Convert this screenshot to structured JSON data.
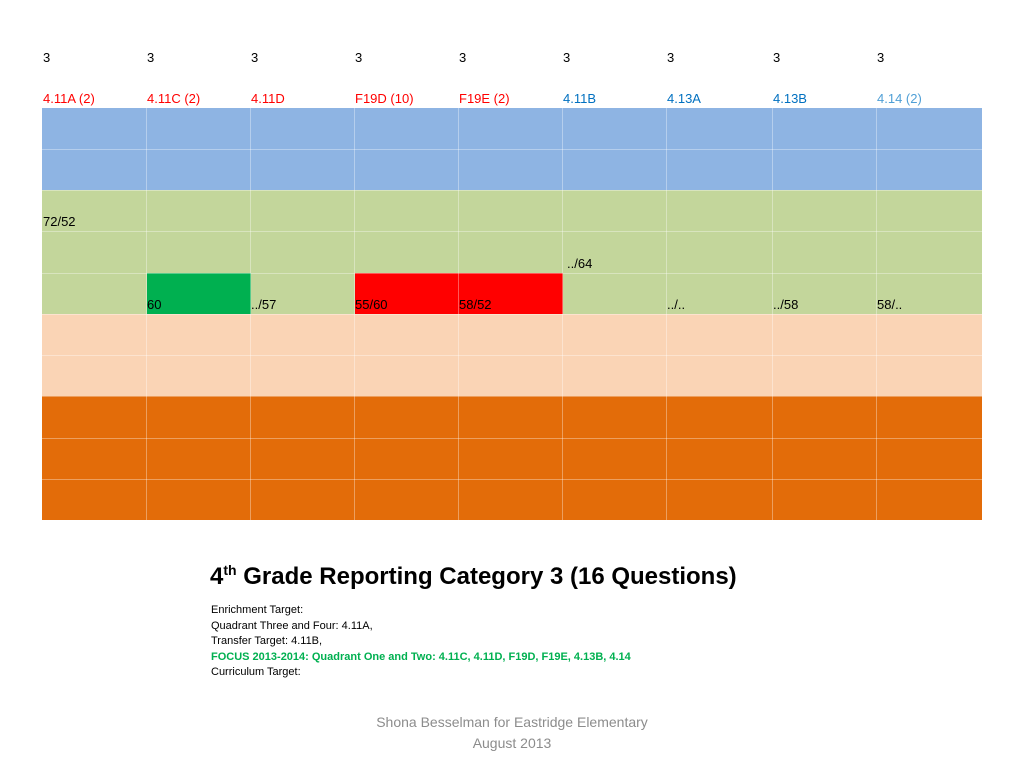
{
  "header": {
    "category_numbers": [
      "3",
      "3",
      "3",
      "3",
      "3",
      "3",
      "3",
      "3",
      "3"
    ],
    "standards": [
      {
        "label": "4.11A (2)",
        "color": "#ff0000"
      },
      {
        "label": "4.11C (2)",
        "color": "#ff0000"
      },
      {
        "label": "4.11D",
        "color": "#ff0000"
      },
      {
        "label": "F19D (10)",
        "color": "#ff0000"
      },
      {
        "label": "F19E (2)",
        "color": "#ff0000"
      },
      {
        "label": "4.11B",
        "color": "#0070c0"
      },
      {
        "label": "4.13A",
        "color": "#0070c0"
      },
      {
        "label": "4.13B",
        "color": "#0070c0"
      },
      {
        "label": "4.14 (2)",
        "color": "#4f9fd6"
      }
    ]
  },
  "grid": {
    "band_colors": {
      "blue": "#8eb4e3",
      "green": "#c3d69b",
      "peach": "#fad4b5",
      "orange": "#e36c09",
      "highlight_green": "#00b050",
      "highlight_red": "#ff0000"
    },
    "scores": [
      {
        "text": "72/52"
      },
      {
        "text": "60"
      },
      {
        "text": "../57"
      },
      {
        "text": "55/60"
      },
      {
        "text": "58/52"
      },
      {
        "text": "../64"
      },
      {
        "text": "../.."
      },
      {
        "text": "../58"
      },
      {
        "text": "58/.."
      }
    ]
  },
  "title": {
    "grade": "4",
    "suffix": "th",
    "rest": " Grade Reporting Category 3 (16 Questions)"
  },
  "notes": [
    {
      "text": "Enrichment Target:",
      "focus": false
    },
    {
      "text": "Quadrant Three and Four: 4.11A,",
      "focus": false
    },
    {
      "text": "Transfer Target: 4.11B,",
      "focus": false
    },
    {
      "text": "FOCUS 2013-2014: Quadrant One and Two: 4.11C, 4.11D, F19D, F19E, 4.13B, 4.14",
      "focus": true
    },
    {
      "text": "Curriculum Target:",
      "focus": false
    }
  ],
  "footer": {
    "line1": "Shona Besselman for Eastridge Elementary",
    "line2": "August 2013"
  }
}
